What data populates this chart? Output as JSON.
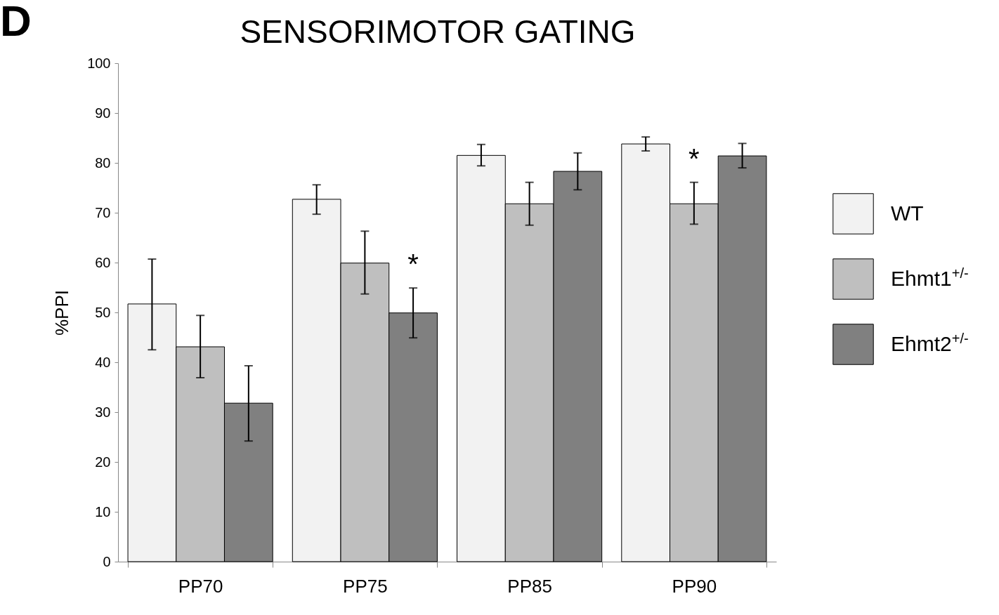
{
  "chart_data": {
    "type": "bar",
    "title": "SENSORIMOTOR GATING",
    "ylabel": "%PPI",
    "categories": [
      "PP70",
      "PP75",
      "PP85",
      "PP90"
    ],
    "series": [
      {
        "name": "WT",
        "color": "#f2f2f2",
        "values": [
          51.7,
          72.7,
          81.5,
          83.8
        ],
        "errors": [
          [
            42.5,
            60.7
          ],
          [
            69.7,
            75.6
          ],
          [
            79.4,
            83.7
          ],
          [
            82.4,
            85.2
          ]
        ]
      },
      {
        "name": "Ehmt1$^{+/-}$",
        "color": "#bfbfbf",
        "values": [
          43.1,
          59.9,
          71.8,
          71.8
        ],
        "errors": [
          [
            36.9,
            49.4
          ],
          [
            53.7,
            66.3
          ],
          [
            67.5,
            76.1
          ],
          [
            67.7,
            76.1
          ]
        ]
      },
      {
        "name": "Ehmt2$^{+/-}$",
        "color": "#808080",
        "values": [
          31.8,
          49.9,
          78.3,
          81.4
        ],
        "errors": [
          [
            24.2,
            39.3
          ],
          [
            44.9,
            54.9
          ],
          [
            74.6,
            82.0
          ],
          [
            79.0,
            83.9
          ]
        ]
      }
    ],
    "ylim": [
      0,
      100
    ],
    "yticks": [
      0,
      10,
      20,
      30,
      40,
      50,
      60,
      70,
      80,
      90,
      100
    ],
    "grid": false,
    "legend": "right",
    "annotations": [
      "D",
      {
        "text": "*",
        "x": "PP75",
        "y": 54.9
      },
      {
        "text": "*",
        "x": "PP90",
        "y": 76.1
      }
    ]
  }
}
